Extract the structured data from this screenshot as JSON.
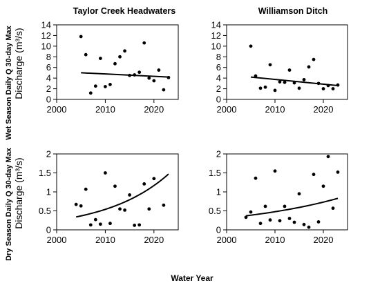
{
  "figure": {
    "xlabel": "Water Year",
    "row_labels": [
      "Wet Season Daily Q 30-day Max",
      "Dry Season Daily Q 30-day Max"
    ],
    "ylabel": "Discharge (m³/s)"
  },
  "chart_data": [
    {
      "type": "scatter",
      "title": "Taylor Creek Headwaters",
      "ylabel": "Discharge (m³/s)",
      "xlim": [
        2000,
        2025
      ],
      "ylim": [
        0,
        14
      ],
      "xticks": [
        "2000",
        "2010",
        "2020"
      ],
      "yticks": [
        "0",
        "2",
        "4",
        "6",
        "8",
        "10",
        "12",
        "14"
      ],
      "x": [
        2005,
        2006,
        2007,
        2008,
        2009,
        2010,
        2011,
        2012,
        2013,
        2014,
        2015,
        2016,
        2017,
        2018,
        2019,
        2020,
        2021,
        2022,
        2023
      ],
      "y": [
        11.8,
        8.4,
        1.2,
        2.5,
        7.7,
        2.4,
        2.8,
        6.7,
        8.0,
        9.1,
        4.5,
        4.6,
        5.1,
        10.6,
        4.0,
        3.5,
        5.5,
        1.8,
        4.1
      ],
      "trend": {
        "shape": "linear",
        "x": [
          2005,
          2023
        ],
        "y": [
          5.0,
          4.2
        ]
      }
    },
    {
      "type": "scatter",
      "title": "Williamson Ditch",
      "ylabel": "",
      "xlim": [
        2000,
        2025
      ],
      "ylim": [
        0,
        14
      ],
      "xticks": [
        "2000",
        "2010",
        "2020"
      ],
      "yticks": [
        "0",
        "2",
        "4",
        "6",
        "8",
        "10",
        "12",
        "14"
      ],
      "x": [
        2005,
        2006,
        2007,
        2008,
        2009,
        2010,
        2011,
        2012,
        2013,
        2014,
        2015,
        2016,
        2017,
        2018,
        2019,
        2020,
        2021,
        2022,
        2023
      ],
      "y": [
        10.0,
        4.4,
        2.1,
        2.3,
        6.5,
        1.7,
        3.3,
        3.2,
        5.5,
        3.1,
        2.1,
        3.7,
        6.1,
        7.5,
        3.0,
        2.0,
        2.6,
        2.0,
        2.7
      ],
      "trend": {
        "shape": "linear",
        "x": [
          2005,
          2023
        ],
        "y": [
          4.2,
          2.6
        ]
      }
    },
    {
      "type": "scatter",
      "title": "",
      "ylabel": "Discharge (m³/s)",
      "xlim": [
        2000,
        2025
      ],
      "ylim": [
        0,
        2
      ],
      "xticks": [
        "2000",
        "2010",
        "2020"
      ],
      "yticks": [
        "0",
        "0.5",
        "1",
        "1.5",
        "2"
      ],
      "x": [
        2004,
        2005,
        2006,
        2007,
        2008,
        2009,
        2010,
        2011,
        2012,
        2013,
        2014,
        2015,
        2016,
        2017,
        2018,
        2019,
        2020,
        2022
      ],
      "y": [
        0.67,
        0.63,
        1.07,
        0.13,
        0.27,
        0.15,
        1.5,
        0.17,
        1.15,
        0.55,
        0.52,
        0.92,
        0.12,
        0.13,
        1.21,
        0.55,
        1.35,
        0.65
      ],
      "trend": {
        "shape": "exponential",
        "x": [
          2004,
          2023
        ],
        "y": [
          0.34,
          1.47
        ]
      }
    },
    {
      "type": "scatter",
      "title": "",
      "ylabel": "",
      "xlim": [
        2000,
        2025
      ],
      "ylim": [
        0,
        2
      ],
      "xticks": [
        "2000",
        "2010",
        "2020"
      ],
      "yticks": [
        "0",
        "0.5",
        "1",
        "1.5",
        "2"
      ],
      "x": [
        2004,
        2005,
        2006,
        2007,
        2008,
        2009,
        2010,
        2011,
        2012,
        2013,
        2014,
        2015,
        2016,
        2017,
        2018,
        2019,
        2020,
        2021,
        2022,
        2023
      ],
      "y": [
        0.33,
        0.47,
        1.36,
        0.17,
        0.62,
        0.26,
        1.55,
        0.24,
        0.62,
        0.3,
        0.2,
        0.95,
        0.14,
        0.07,
        1.46,
        0.21,
        1.15,
        1.93,
        0.57,
        1.52
      ],
      "trend": {
        "shape": "exponential",
        "x": [
          2004,
          2023
        ],
        "y": [
          0.37,
          0.83
        ]
      }
    }
  ]
}
